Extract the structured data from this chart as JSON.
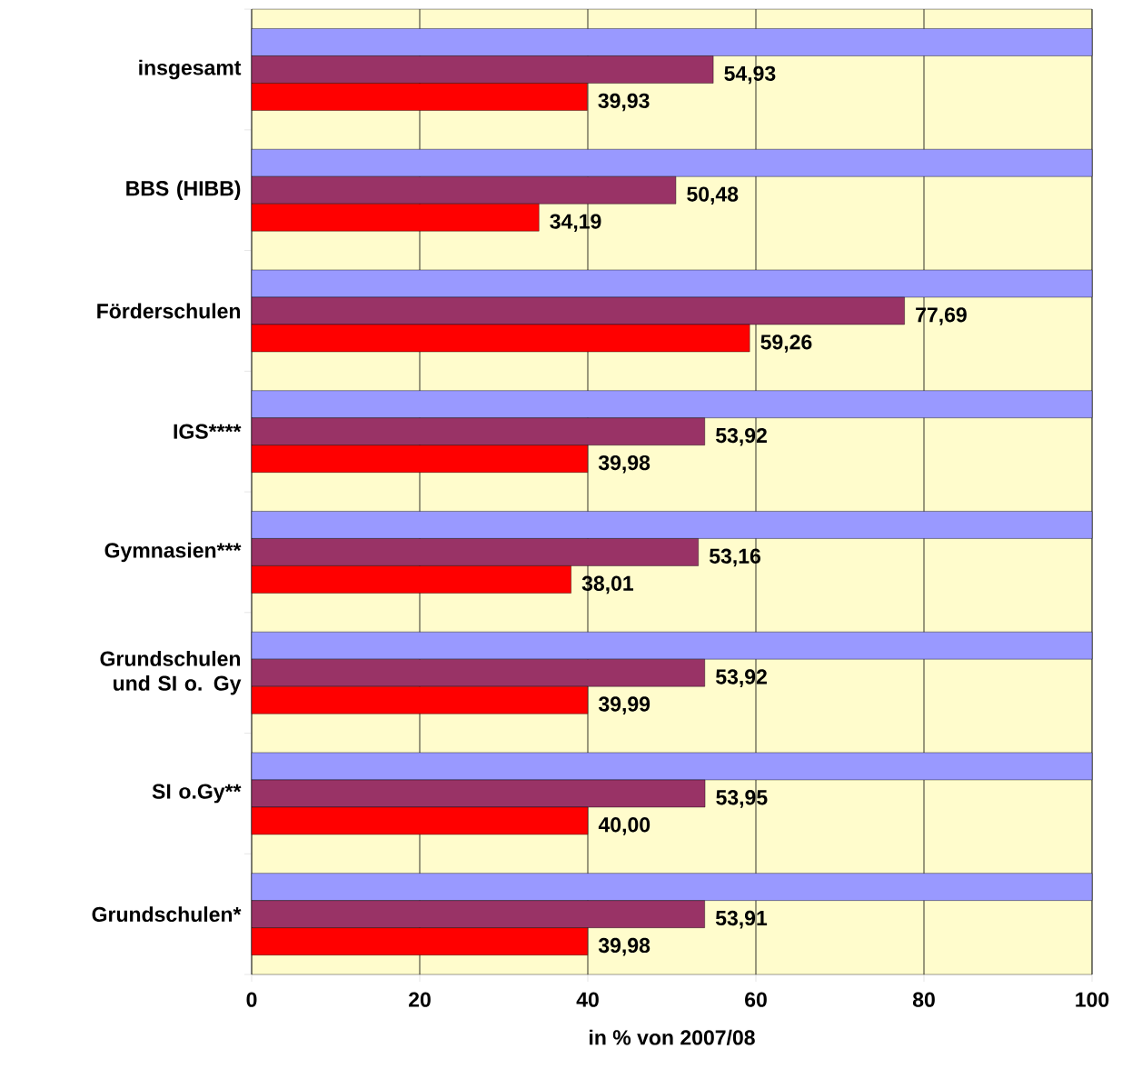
{
  "chart_data": {
    "type": "bar",
    "orientation": "horizontal",
    "xlabel": "in % von 2007/08",
    "categories": [
      "insgesamt",
      "BBS (HIBB)",
      "Förderschulen",
      "IGS****",
      "Gymnasien***",
      "Grundschulen und SI o. Gy",
      "SI o.Gy**",
      "Grundschulen*"
    ],
    "series": [
      {
        "color": "#9999ff",
        "values": [
          100,
          100,
          100,
          100,
          100,
          100,
          100,
          100
        ]
      },
      {
        "color": "#993366",
        "values": [
          54.93,
          50.48,
          77.69,
          53.92,
          53.16,
          53.92,
          53.95,
          53.91
        ],
        "value_labels": [
          "54,93",
          "50,48",
          "77,69",
          "53,92",
          "53,16",
          "53,92",
          "53,95",
          "53,91"
        ]
      },
      {
        "color": "#ff0000",
        "values": [
          39.93,
          34.19,
          59.26,
          39.98,
          38.01,
          39.99,
          40.0,
          39.98
        ],
        "value_labels": [
          "39,93",
          "34,19",
          "59,26",
          "39,98",
          "38,01",
          "39,99",
          "40,00",
          "39,98"
        ]
      }
    ],
    "xlim": [
      0,
      100
    ],
    "xticks": [
      0,
      20,
      40,
      60,
      80,
      100
    ],
    "grid": "x"
  }
}
